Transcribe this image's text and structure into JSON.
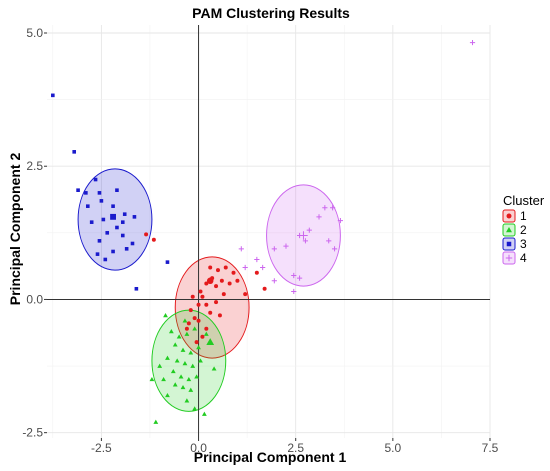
{
  "chart_data": {
    "type": "scatter",
    "title": "PAM Clustering Results",
    "xlabel": "Principal Component 1",
    "ylabel": "Principal Component 2",
    "xlim": [
      -3.9,
      7.5
    ],
    "ylim": [
      -2.6,
      5.15
    ],
    "x_ticks": [
      -2.5,
      0.0,
      2.5,
      5.0,
      7.5
    ],
    "x_tick_labels": [
      "-2.5",
      "0.0",
      "2.5",
      "5.0",
      "7.5"
    ],
    "y_ticks": [
      -2.5,
      0.0,
      2.5,
      5.0
    ],
    "y_tick_labels": [
      "-2.5",
      "0.0",
      "2.5",
      "5.0"
    ],
    "grid": true,
    "reference_lines": {
      "x": 0,
      "y": 0
    },
    "legend": {
      "title": "Cluster",
      "position": "right"
    },
    "series": [
      {
        "name": "1",
        "color": "#e41a1c",
        "shape": "circle",
        "ellipse": {
          "cx": 0.35,
          "cy": -0.15,
          "rx": 0.95,
          "ry": 0.95
        },
        "medoid": [
          0.3,
          0.35
        ],
        "points": [
          [
            -0.15,
            0.05
          ],
          [
            0.05,
            0.15
          ],
          [
            0.2,
            0.3
          ],
          [
            0.35,
            0.4
          ],
          [
            0.45,
            0.25
          ],
          [
            0.6,
            0.35
          ],
          [
            0.8,
            0.3
          ],
          [
            1.0,
            0.35
          ],
          [
            0.5,
            0.55
          ],
          [
            0.3,
            0.6
          ],
          [
            0.7,
            0.6
          ],
          [
            0.9,
            0.5
          ],
          [
            1.2,
            0.1
          ],
          [
            0.65,
            0.1
          ],
          [
            0.45,
            -0.05
          ],
          [
            0.2,
            -0.1
          ],
          [
            0.0,
            -0.1
          ],
          [
            -0.2,
            -0.2
          ],
          [
            -0.1,
            -0.35
          ],
          [
            -0.25,
            -0.45
          ],
          [
            0.0,
            -0.4
          ],
          [
            0.2,
            -0.55
          ],
          [
            -0.3,
            -0.55
          ],
          [
            0.1,
            -0.7
          ],
          [
            -0.05,
            -0.8
          ],
          [
            0.3,
            -0.25
          ],
          [
            0.55,
            -0.3
          ],
          [
            0.1,
            0.05
          ],
          [
            1.7,
            0.2
          ],
          [
            1.5,
            0.5
          ],
          [
            -1.15,
            1.12
          ],
          [
            -1.35,
            1.22
          ]
        ]
      },
      {
        "name": "2",
        "color": "#22cc22",
        "shape": "triangle",
        "ellipse": {
          "cx": -0.25,
          "cy": -1.15,
          "rx": 0.95,
          "ry": 0.95
        },
        "medoid": [
          0.3,
          -0.8
        ],
        "points": [
          [
            -0.85,
            -0.3
          ],
          [
            -0.7,
            -0.6
          ],
          [
            -0.5,
            -0.7
          ],
          [
            -0.3,
            -0.65
          ],
          [
            -0.1,
            -0.55
          ],
          [
            -0.6,
            -0.85
          ],
          [
            -0.4,
            -0.95
          ],
          [
            -0.2,
            -1.0
          ],
          [
            0.0,
            -0.9
          ],
          [
            -0.8,
            -1.1
          ],
          [
            -0.55,
            -1.15
          ],
          [
            -0.35,
            -1.2
          ],
          [
            -0.15,
            -1.25
          ],
          [
            0.05,
            -1.15
          ],
          [
            -0.65,
            -1.35
          ],
          [
            -0.45,
            -1.45
          ],
          [
            -0.25,
            -1.5
          ],
          [
            -0.05,
            -1.45
          ],
          [
            -0.9,
            -1.5
          ],
          [
            -0.6,
            -1.6
          ],
          [
            -0.4,
            -1.65
          ],
          [
            -0.2,
            -1.7
          ],
          [
            -1.0,
            -1.25
          ],
          [
            -1.2,
            -1.5
          ],
          [
            -0.8,
            -1.8
          ],
          [
            -0.3,
            -1.9
          ],
          [
            -0.1,
            -2.05
          ],
          [
            0.15,
            -2.15
          ],
          [
            -1.1,
            -2.3
          ],
          [
            0.4,
            -1.3
          ],
          [
            -0.35,
            -0.4
          ],
          [
            0.2,
            -0.65
          ]
        ]
      },
      {
        "name": "3",
        "color": "#1a1acc",
        "shape": "square",
        "ellipse": {
          "cx": -2.15,
          "cy": 1.5,
          "rx": 0.95,
          "ry": 0.95
        },
        "medoid": [
          -2.2,
          1.55
        ],
        "points": [
          [
            -3.75,
            3.83
          ],
          [
            -3.2,
            2.77
          ],
          [
            -2.65,
            2.25
          ],
          [
            -3.1,
            2.05
          ],
          [
            -2.9,
            2.0
          ],
          [
            -2.55,
            2.0
          ],
          [
            -2.1,
            2.05
          ],
          [
            -2.5,
            1.85
          ],
          [
            -2.85,
            1.75
          ],
          [
            -2.2,
            1.75
          ],
          [
            -1.9,
            1.6
          ],
          [
            -1.65,
            1.55
          ],
          [
            -2.45,
            1.5
          ],
          [
            -2.75,
            1.45
          ],
          [
            -2.1,
            1.35
          ],
          [
            -2.35,
            1.25
          ],
          [
            -1.95,
            1.2
          ],
          [
            -2.55,
            1.1
          ],
          [
            -1.85,
            0.95
          ],
          [
            -2.2,
            0.9
          ],
          [
            -2.6,
            0.85
          ],
          [
            -1.7,
            1.05
          ],
          [
            -2.4,
            0.75
          ],
          [
            -1.6,
            0.2
          ],
          [
            -0.8,
            0.7
          ],
          [
            -1.95,
            1.45
          ]
        ]
      },
      {
        "name": "4",
        "color": "#cc66ee",
        "shape": "plus",
        "ellipse": {
          "cx": 2.7,
          "cy": 1.2,
          "rx": 0.95,
          "ry": 0.95
        },
        "medoid": [
          2.7,
          1.2
        ],
        "points": [
          [
            7.05,
            4.82
          ],
          [
            3.25,
            1.72
          ],
          [
            3.45,
            1.72
          ],
          [
            3.1,
            1.55
          ],
          [
            3.65,
            1.48
          ],
          [
            2.85,
            1.3
          ],
          [
            2.6,
            1.2
          ],
          [
            2.75,
            1.1
          ],
          [
            3.35,
            1.1
          ],
          [
            2.25,
            1.0
          ],
          [
            1.95,
            0.95
          ],
          [
            1.1,
            0.95
          ],
          [
            1.5,
            0.75
          ],
          [
            1.65,
            0.6
          ],
          [
            1.2,
            0.6
          ],
          [
            2.6,
            0.4
          ],
          [
            1.95,
            0.35
          ],
          [
            2.45,
            0.15
          ],
          [
            3.5,
            0.95
          ],
          [
            2.45,
            0.45
          ]
        ]
      }
    ]
  }
}
